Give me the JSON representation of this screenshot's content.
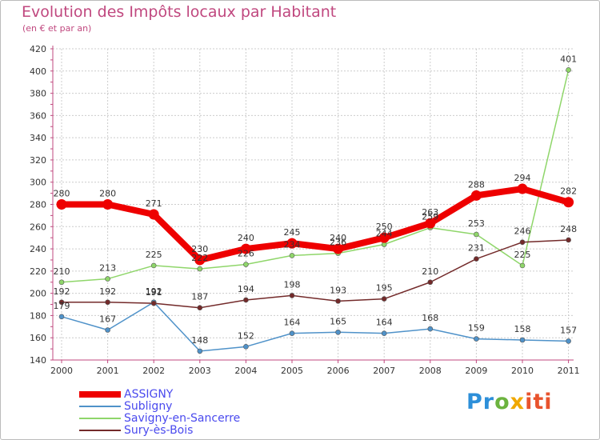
{
  "title": "Evolution des Impôts locaux par Habitant",
  "subtitle": "(en € et par an)",
  "logo": {
    "text": "Proxiti",
    "parts": [
      "Pr",
      "o",
      "x",
      "iti"
    ]
  },
  "chart_data": {
    "type": "line",
    "title": "Evolution des Impôts locaux par Habitant",
    "subtitle": "(en € et par an)",
    "xlabel": "",
    "ylabel": "",
    "x": [
      "2000",
      "2001",
      "2002",
      "2003",
      "2004",
      "2005",
      "2006",
      "2007",
      "2008",
      "2009",
      "2010",
      "2011"
    ],
    "ylim": [
      140,
      420
    ],
    "yticks": [
      140,
      160,
      180,
      200,
      220,
      240,
      260,
      280,
      300,
      320,
      340,
      360,
      380,
      400,
      420
    ],
    "grid": true,
    "legend": "bottom-left",
    "series": [
      {
        "name": "ASSIGNY",
        "color": "#ee0000",
        "thick": true,
        "values": [
          280,
          280,
          271,
          230,
          240,
          245,
          240,
          250,
          263,
          288,
          294,
          282
        ]
      },
      {
        "name": "Subligny",
        "color": "#4f92c9",
        "thick": false,
        "values": [
          179,
          167,
          192,
          148,
          152,
          164,
          165,
          164,
          168,
          159,
          158,
          157
        ]
      },
      {
        "name": "Savigny-en-Sancerre",
        "color": "#8fd66a",
        "thick": false,
        "values": [
          210,
          213,
          225,
          222,
          226,
          234,
          236,
          244,
          259,
          253,
          225,
          401
        ]
      },
      {
        "name": "Sury-ès-Bois",
        "color": "#732a2a",
        "thick": false,
        "values": [
          192,
          192,
          191,
          187,
          194,
          198,
          193,
          195,
          210,
          231,
          246,
          248
        ]
      }
    ]
  }
}
